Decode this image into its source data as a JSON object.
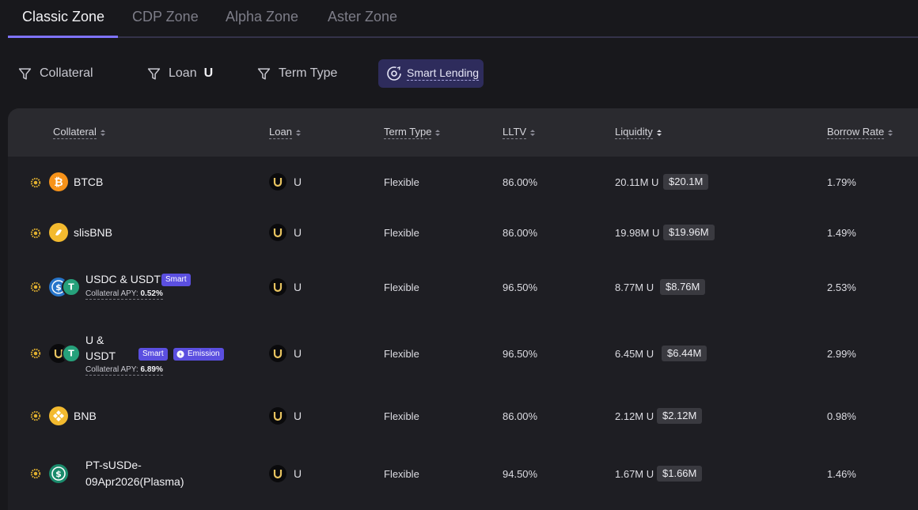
{
  "zone_tabs": [
    "Classic Zone",
    "CDP Zone",
    "Alpha Zone",
    "Aster Zone"
  ],
  "filters": {
    "collateral": "Collateral",
    "loan": "Loan",
    "loan_value": "U",
    "term_type": "Term Type",
    "smart_lending": "Smart Lending"
  },
  "table": {
    "headers": {
      "collateral": "Collateral",
      "loan": "Loan",
      "term_type": "Term Type",
      "lltv": "LLTV",
      "liquidity": "Liquidity",
      "borrow_rate": "Borrow Rate"
    },
    "rows": [
      {
        "collateral": "BTCB",
        "loan": "U",
        "term": "Flexible",
        "lltv": "86.00%",
        "liquidity": "20.11M U",
        "liquidity_usd": "$20.1M",
        "rate": "1.79%"
      },
      {
        "collateral": "slisBNB",
        "loan": "U",
        "term": "Flexible",
        "lltv": "86.00%",
        "liquidity": "19.98M U",
        "liquidity_usd": "$19.96M",
        "rate": "1.49%"
      },
      {
        "collateral": "USDC & USDT",
        "badge": "Smart",
        "apy_label": "Collateral APY:",
        "apy_value": "0.52%",
        "loan": "U",
        "term": "Flexible",
        "lltv": "96.50%",
        "liquidity": "8.77M U",
        "liquidity_usd": "$8.76M",
        "rate": "2.53%"
      },
      {
        "collateral_line1": "U &",
        "collateral_line2": "USDT",
        "badge": "Smart",
        "badge2": "Emission",
        "apy_label": "Collateral APY:",
        "apy_value": "6.89%",
        "loan": "U",
        "term": "Flexible",
        "lltv": "96.50%",
        "liquidity": "6.45M U",
        "liquidity_usd": "$6.44M",
        "rate": "2.99%"
      },
      {
        "collateral": "BNB",
        "loan": "U",
        "term": "Flexible",
        "lltv": "86.00%",
        "liquidity": "2.12M U",
        "liquidity_usd": "$2.12M",
        "rate": "0.98%"
      },
      {
        "collateral_line1": "PT-sUSDe-",
        "collateral_line2": "09Apr2026(Plasma)",
        "loan": "U",
        "term": "Flexible",
        "lltv": "94.50%",
        "liquidity": "1.67M U",
        "liquidity_usd": "$1.66M",
        "rate": "1.46%"
      }
    ]
  },
  "colors": {
    "accent": "#7f73ff",
    "badge": "#5b4fe0",
    "btc": "#f7931a",
    "bnb": "#f3ba2f",
    "usdc": "#2775ca",
    "usdt": "#26a17b"
  }
}
